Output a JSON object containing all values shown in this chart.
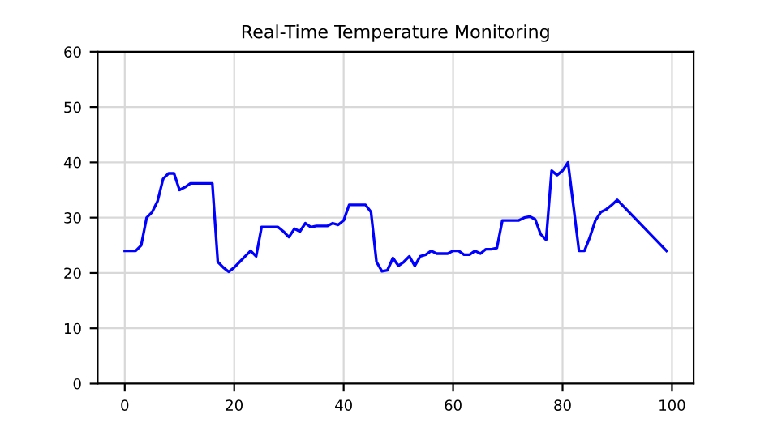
{
  "chart_data": {
    "type": "line",
    "title": "Real-Time Temperature Monitoring",
    "x": [
      0,
      1,
      2,
      3,
      4,
      5,
      6,
      7,
      8,
      9,
      10,
      11,
      12,
      13,
      14,
      15,
      16,
      17,
      18,
      19,
      20,
      21,
      22,
      23,
      24,
      25,
      26,
      27,
      28,
      29,
      30,
      31,
      32,
      33,
      34,
      35,
      36,
      37,
      38,
      39,
      40,
      41,
      42,
      43,
      44,
      45,
      46,
      47,
      48,
      49,
      50,
      51,
      52,
      53,
      54,
      55,
      56,
      57,
      58,
      59,
      60,
      61,
      62,
      63,
      64,
      65,
      66,
      67,
      68,
      69,
      70,
      71,
      72,
      73,
      74,
      75,
      76,
      77,
      78,
      79,
      80,
      81,
      82,
      83,
      84,
      85,
      86,
      87,
      88,
      89,
      90,
      99
    ],
    "series": [
      {
        "color": "#0000ff",
        "values": [
          24,
          24,
          24,
          25,
          30,
          31,
          33,
          37,
          38,
          38,
          35,
          35.5,
          36.2,
          36.2,
          36.2,
          36.2,
          36.2,
          22,
          21,
          20.2,
          21,
          22,
          23,
          24,
          23,
          28.3,
          28.3,
          28.3,
          28.3,
          27.5,
          26.5,
          28,
          27.5,
          29,
          28.3,
          28.5,
          28.5,
          28.5,
          29,
          28.7,
          29.5,
          32.3,
          32.3,
          32.3,
          32.3,
          31,
          22,
          20.3,
          20.5,
          22.7,
          21.3,
          22,
          23,
          21.3,
          23,
          23.3,
          24,
          23.5,
          23.5,
          23.5,
          24,
          24,
          23.3,
          23.3,
          24,
          23.5,
          24.3,
          24.3,
          24.5,
          29.5,
          29.5,
          29.5,
          29.5,
          30,
          30.2,
          29.7,
          27,
          26,
          38.5,
          37.7,
          38.5,
          40,
          32,
          24,
          24,
          26.5,
          29.5,
          31,
          31.5,
          32.3,
          33.2,
          24
        ]
      }
    ],
    "xlim": [
      -4.95,
      103.95
    ],
    "ylim": [
      0,
      60
    ],
    "xticks": [
      0,
      20,
      40,
      60,
      80,
      100
    ],
    "yticks": [
      0,
      10,
      20,
      30,
      40,
      50,
      60
    ],
    "grid": true
  }
}
